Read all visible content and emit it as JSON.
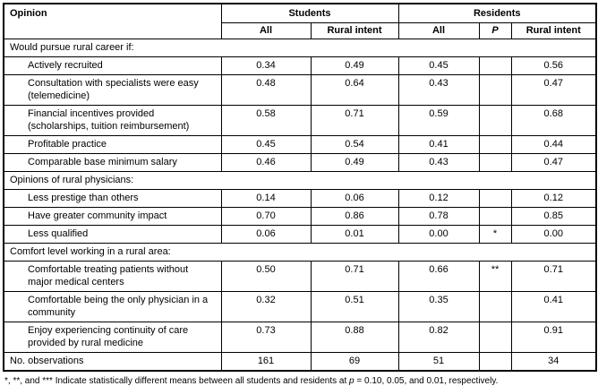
{
  "table": {
    "header": {
      "opinion_label": "Opinion",
      "students_group_label": "Students",
      "residents_group_label": "Residents",
      "students_all_label": "All",
      "students_rural_intent_label": "Rural intent",
      "residents_all_label": "All",
      "p_label": "P",
      "residents_rural_intent_label": "Rural intent"
    },
    "sections": [
      {
        "label": "Would pursue rural career if:",
        "rows": [
          {
            "label": "Actively recruited",
            "students_all": "0.34",
            "students_rural_intent": "0.49",
            "residents_all": "0.45",
            "p": "",
            "residents_rural_intent": "0.56"
          },
          {
            "label": "Consultation with specialists were easy (telemedicine)",
            "students_all": "0.48",
            "students_rural_intent": "0.64",
            "residents_all": "0.43",
            "p": "",
            "residents_rural_intent": "0.47"
          },
          {
            "label": "Financial incentives provided (scholarships, tuition reimbursement)",
            "students_all": "0.58",
            "students_rural_intent": "0.71",
            "residents_all": "0.59",
            "p": "",
            "residents_rural_intent": "0.68"
          },
          {
            "label": "Profitable practice",
            "students_all": "0.45",
            "students_rural_intent": "0.54",
            "residents_all": "0.41",
            "p": "",
            "residents_rural_intent": "0.44"
          },
          {
            "label": "Comparable base minimum salary",
            "students_all": "0.46",
            "students_rural_intent": "0.49",
            "residents_all": "0.43",
            "p": "",
            "residents_rural_intent": "0.47"
          }
        ]
      },
      {
        "label": "Opinions of rural physicians:",
        "rows": [
          {
            "label": "Less prestige than others",
            "students_all": "0.14",
            "students_rural_intent": "0.06",
            "residents_all": "0.12",
            "p": "",
            "residents_rural_intent": "0.12"
          },
          {
            "label": "Have greater community impact",
            "students_all": "0.70",
            "students_rural_intent": "0.86",
            "residents_all": "0.78",
            "p": "",
            "residents_rural_intent": "0.85"
          },
          {
            "label": "Less qualified",
            "students_all": "0.06",
            "students_rural_intent": "0.01",
            "residents_all": "0.00",
            "p": "*",
            "residents_rural_intent": "0.00"
          }
        ]
      },
      {
        "label": "Comfort level working in a rural area:",
        "rows": [
          {
            "label": "Comfortable treating patients without major medical centers",
            "students_all": "0.50",
            "students_rural_intent": "0.71",
            "residents_all": "0.66",
            "p": "**",
            "residents_rural_intent": "0.71"
          },
          {
            "label": "Comfortable being the only physician in a community",
            "students_all": "0.32",
            "students_rural_intent": "0.51",
            "residents_all": "0.35",
            "p": "",
            "residents_rural_intent": "0.41"
          },
          {
            "label": "Enjoy experiencing continuity of care provided by rural medicine",
            "students_all": "0.73",
            "students_rural_intent": "0.88",
            "residents_all": "0.82",
            "p": "",
            "residents_rural_intent": "0.91"
          }
        ]
      }
    ],
    "observations": {
      "label": "No. observations",
      "students_all": "161",
      "students_rural_intent": "69",
      "residents_all": "51",
      "p": "",
      "residents_rural_intent": "34"
    }
  },
  "footnote": {
    "prefix": "*, **, and *** Indicate statistically different means between all students and residents at ",
    "symbol": "p",
    "suffix": " = 0.10, 0.05, and 0.01, respectively."
  }
}
